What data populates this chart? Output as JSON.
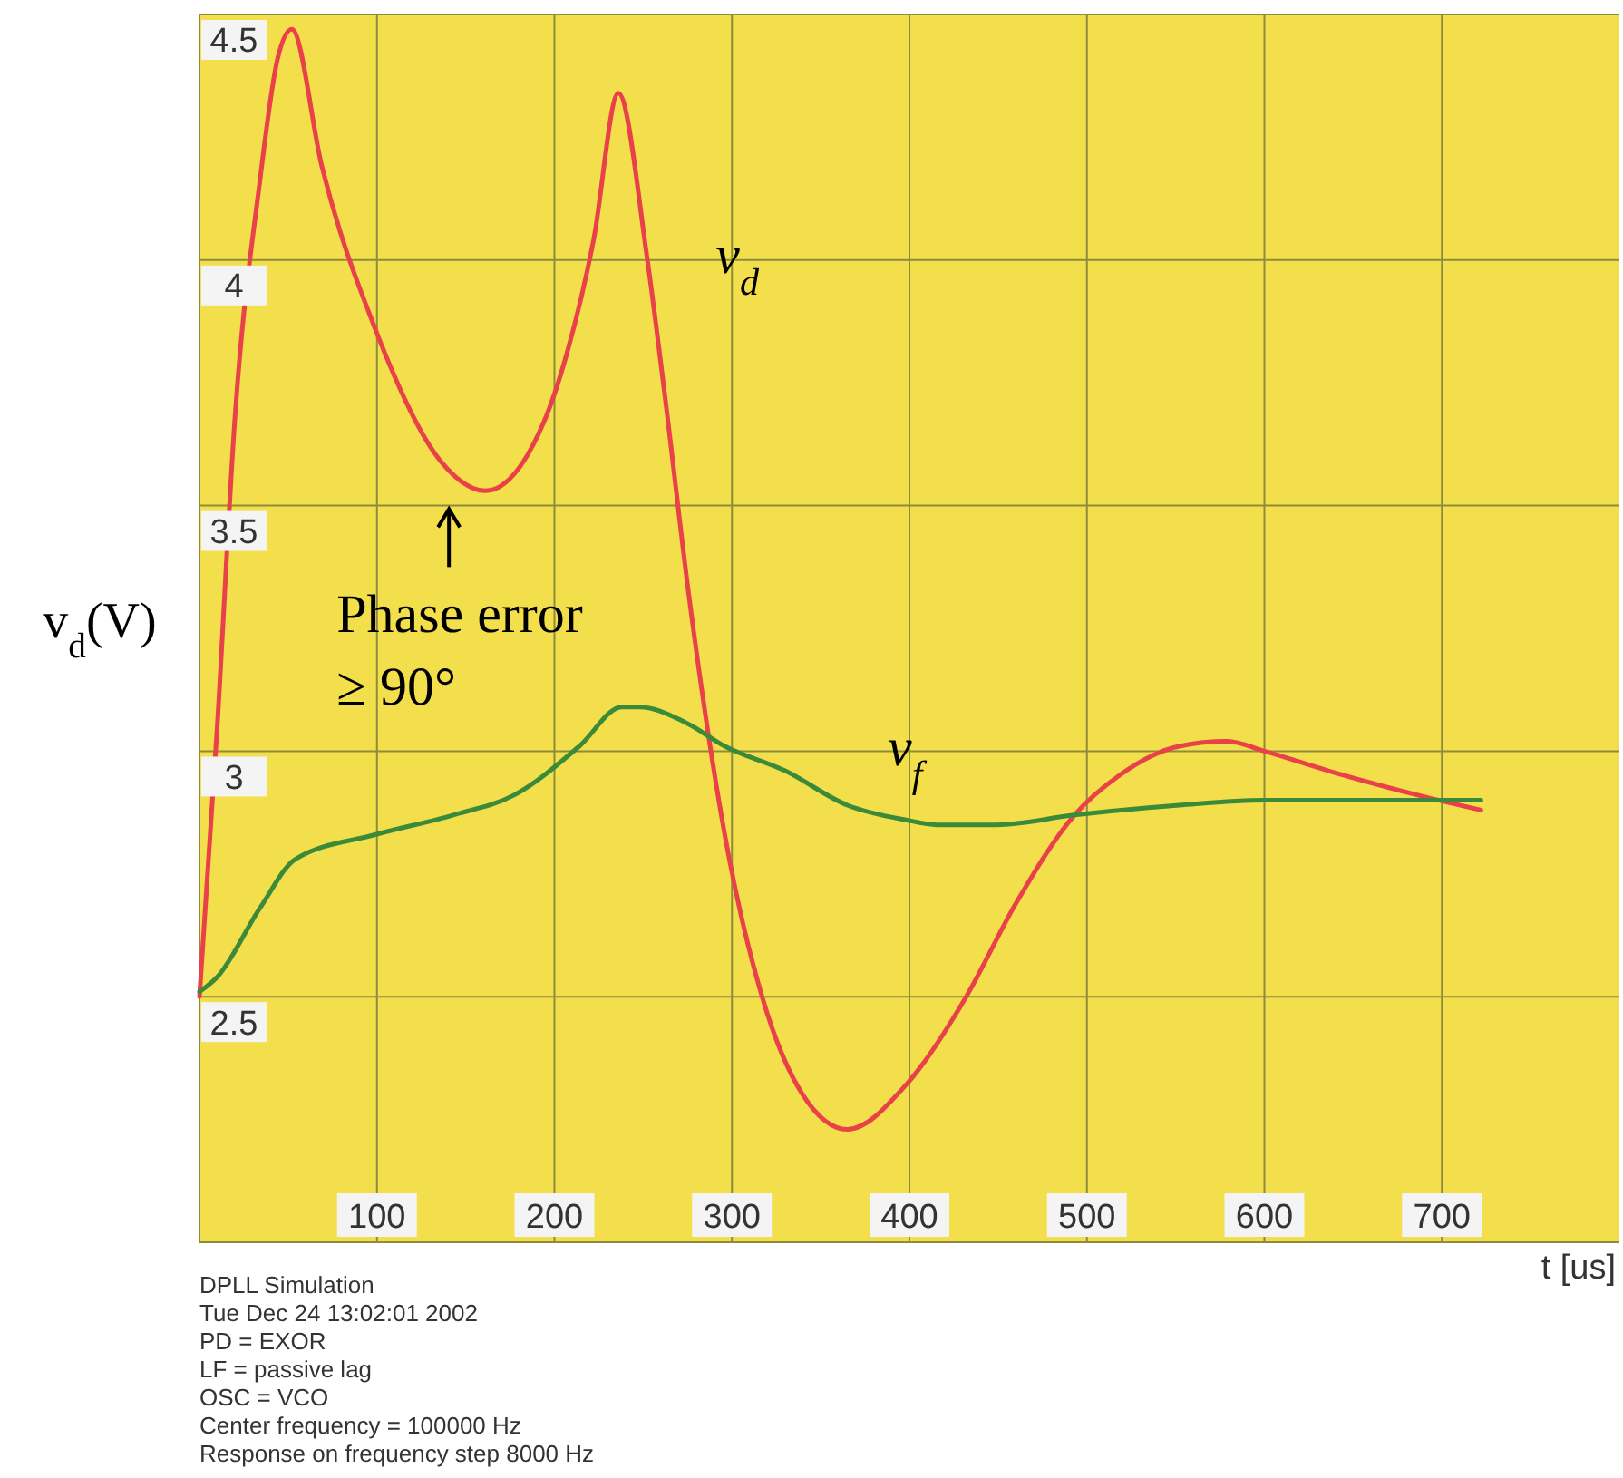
{
  "chart_data": {
    "type": "line",
    "ylabel": "v$_{d}$(V)",
    "xlabel": "t [us]",
    "xlim": [
      0,
      800
    ],
    "xticks": [
      100,
      200,
      300,
      400,
      500,
      600,
      700
    ],
    "ylim": [
      2,
      4.5
    ],
    "yticks": [
      2.5,
      3,
      3.5,
      4,
      4.5
    ],
    "grid": true,
    "marker": "none",
    "line_style": "solid",
    "series": [
      {
        "name": "v$_{d}$",
        "color": "#e8414a",
        "x": [
          0,
          10,
          20,
          34,
          44,
          52,
          69,
          99,
          136,
          161,
          194,
          207,
          222,
          236,
          252,
          262,
          276,
          298,
          317,
          340,
          365,
          398,
          432,
          460,
          493,
          518,
          552,
          579,
          600,
          636,
          687,
          722
        ],
        "values": [
          2.5,
          3.05,
          3.68,
          4.16,
          4.41,
          4.47,
          4.19,
          3.86,
          3.59,
          3.53,
          3.67,
          3.81,
          4.04,
          4.34,
          4.01,
          3.73,
          3.31,
          2.79,
          2.5,
          2.3,
          2.23,
          2.32,
          2.5,
          2.69,
          2.87,
          2.95,
          3.01,
          3.02,
          3.0,
          2.96,
          2.91,
          2.88
        ]
      },
      {
        "name": "v$_{f}$",
        "color": "#3a8a3a",
        "x": [
          0,
          10,
          34,
          54,
          99,
          143,
          177,
          214,
          238,
          248,
          273,
          296,
          330,
          365,
          398,
          416,
          449,
          493,
          552,
          600,
          654,
          722
        ],
        "values": [
          2.51,
          2.54,
          2.68,
          2.78,
          2.83,
          2.87,
          2.91,
          3.01,
          3.09,
          3.09,
          3.06,
          3.01,
          2.96,
          2.89,
          2.86,
          2.85,
          2.85,
          2.87,
          2.89,
          2.9,
          2.9,
          2.9
        ]
      }
    ],
    "annotations": [
      {
        "text": "Phase error\n≥ 90°",
        "x": 161,
        "y": 3.53
      },
      "DPLL Simulation",
      "Tue Dec 24 13:02:01 2002",
      "PD = EXOR",
      "LF = passive lag",
      "OSC = VCO",
      "Center frequency = 100000 Hz",
      "Response on frequency step 8000 Hz"
    ]
  }
}
